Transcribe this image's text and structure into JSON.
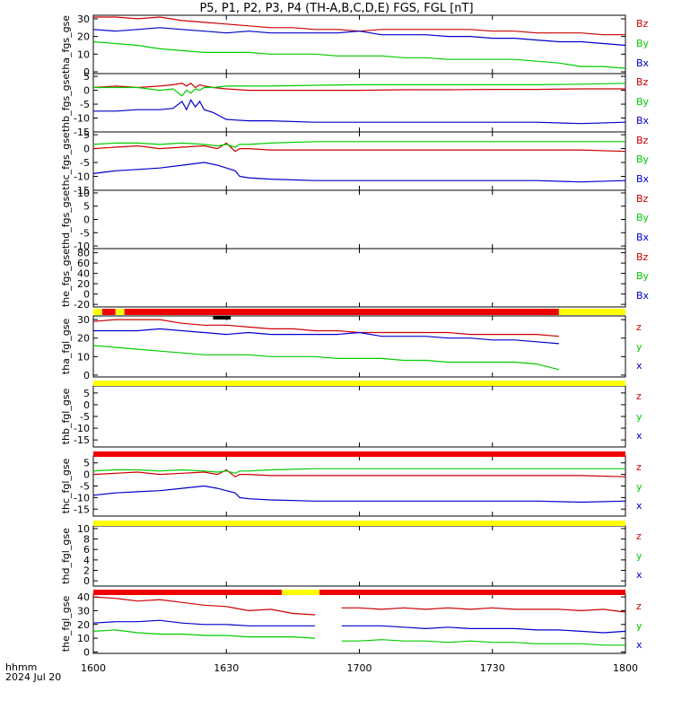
{
  "title": "P5, P1, P2, P3, P4 (TH-A,B,C,D,E) FGS, FGL [nT]",
  "footer": {
    "time_format": "hhmm",
    "date": "2024 Jul 20"
  },
  "x_ticks": [
    "1600",
    "1630",
    "1700",
    "1730",
    "1800"
  ],
  "colors": {
    "x": "#0000cc",
    "y": "#00cc00",
    "z": "#cc0000",
    "bar_red": "#ee0000",
    "bar_yellow": "#ffff00",
    "bar_black": "#000000"
  },
  "chart_data": [
    {
      "type": "line",
      "ylabel": "tha_fgs_gse",
      "ylim": [
        -1,
        32
      ],
      "yticks": [
        0,
        10,
        20,
        30
      ],
      "legend": [
        "Bz",
        "By",
        "Bx"
      ],
      "x": [
        1600,
        1605,
        1610,
        1615,
        1620,
        1625,
        1630,
        1635,
        1640,
        1645,
        1650,
        1655,
        1700,
        1705,
        1710,
        1715,
        1720,
        1725,
        1730,
        1735,
        1740,
        1745,
        1750,
        1755,
        1800
      ],
      "series": [
        {
          "name": "Bz",
          "color": "#cc0000",
          "values": [
            31,
            31,
            30,
            31,
            29,
            28,
            27,
            26,
            25,
            25,
            24,
            24,
            23,
            24,
            24,
            24,
            24,
            24,
            23,
            23,
            22,
            22,
            22,
            21,
            21
          ]
        },
        {
          "name": "By",
          "color": "#00cc00",
          "values": [
            17,
            16,
            15,
            13,
            12,
            11,
            11,
            11,
            10,
            10,
            10,
            9,
            9,
            9,
            8,
            8,
            7,
            7,
            7,
            7,
            6,
            5,
            3,
            3,
            2
          ]
        },
        {
          "name": "Bx",
          "color": "#0000cc",
          "values": [
            24,
            23,
            24,
            25,
            24,
            23,
            22,
            23,
            22,
            22,
            22,
            22,
            23,
            21,
            21,
            21,
            20,
            20,
            19,
            19,
            18,
            17,
            17,
            16,
            15
          ]
        }
      ]
    },
    {
      "type": "line",
      "ylabel": "thb_fgs_gse",
      "ylim": [
        -15,
        6
      ],
      "yticks": [
        -15,
        -10,
        -5,
        0,
        5
      ],
      "legend": [
        "Bz",
        "By",
        "Bx"
      ],
      "x": [
        1600,
        1605,
        1610,
        1615,
        1618,
        1620,
        1621,
        1622,
        1623,
        1624,
        1625,
        1627,
        1630,
        1635,
        1640,
        1650,
        1700,
        1710,
        1720,
        1730,
        1740,
        1750,
        1800
      ],
      "series": [
        {
          "name": "Bz",
          "color": "#cc0000",
          "values": [
            1,
            1.5,
            1,
            1.5,
            2,
            2.5,
            1.5,
            2.5,
            1,
            2,
            1.5,
            1,
            0.5,
            0,
            0,
            0,
            0,
            0.2,
            0.2,
            0.3,
            0.3,
            0.5,
            0.5
          ]
        },
        {
          "name": "By",
          "color": "#00cc00",
          "values": [
            1,
            1,
            1,
            0,
            0.5,
            -2,
            0,
            -1,
            0.5,
            0,
            1,
            1,
            1.5,
            1.5,
            1.5,
            1.8,
            2,
            2,
            2,
            2,
            2,
            2.2,
            2.5
          ]
        },
        {
          "name": "Bx",
          "color": "#0000cc",
          "values": [
            -7.5,
            -7.5,
            -7,
            -7,
            -6.5,
            -4,
            -7,
            -3.5,
            -6,
            -4,
            -7,
            -8,
            -10.5,
            -11,
            -11,
            -11.5,
            -11.5,
            -11.5,
            -11.5,
            -11.5,
            -11.5,
            -12,
            -11.5
          ]
        }
      ]
    },
    {
      "type": "line",
      "ylabel": "thc_fgs_gse",
      "ylim": [
        -15,
        6
      ],
      "yticks": [
        -15,
        -10,
        -5,
        0,
        5
      ],
      "legend": [
        "Bz",
        "By",
        "Bx"
      ],
      "x": [
        1600,
        1605,
        1610,
        1615,
        1620,
        1625,
        1628,
        1630,
        1632,
        1633,
        1635,
        1640,
        1650,
        1700,
        1710,
        1720,
        1730,
        1740,
        1750,
        1800
      ],
      "series": [
        {
          "name": "Bz",
          "color": "#cc0000",
          "values": [
            0,
            0.5,
            1,
            0,
            0.5,
            1,
            0,
            2,
            -1,
            0,
            0,
            -0.5,
            -0.5,
            -0.5,
            -0.5,
            -0.5,
            -0.5,
            -0.5,
            -0.5,
            -1
          ]
        },
        {
          "name": "By",
          "color": "#00cc00",
          "values": [
            1.5,
            2,
            2,
            1.5,
            2,
            1.5,
            1,
            1.5,
            0.5,
            1.5,
            1.5,
            2,
            2.5,
            2.5,
            2.5,
            2.5,
            2.5,
            2.5,
            2.5,
            2.5
          ]
        },
        {
          "name": "Bx",
          "color": "#0000cc",
          "values": [
            -9,
            -8,
            -7.5,
            -7,
            -6,
            -5,
            -6,
            -7,
            -8,
            -10,
            -10.5,
            -11,
            -11.5,
            -11.5,
            -11.5,
            -11.5,
            -11.5,
            -11.5,
            -12,
            -11.5
          ]
        }
      ]
    },
    {
      "type": "line",
      "ylabel": "thd_fgs_gse",
      "ylim": [
        -11,
        11
      ],
      "yticks": [
        -10,
        -5,
        0,
        5,
        10
      ],
      "legend": [
        "Bz",
        "By",
        "Bx"
      ],
      "series": []
    },
    {
      "type": "line",
      "ylabel": "the_fgs_gse",
      "ylim": [
        -25,
        88
      ],
      "yticks": [
        -20,
        0,
        20,
        40,
        60,
        80
      ],
      "legend": [
        "Bz",
        "By",
        "Bx"
      ],
      "series": []
    },
    {
      "type": "line",
      "ylabel": "tha_fgl_gse",
      "ylim": [
        -1,
        32
      ],
      "yticks": [
        0,
        10,
        20,
        30
      ],
      "legend": [
        "z",
        "y",
        "x"
      ],
      "x": [
        1600,
        1605,
        1610,
        1615,
        1620,
        1625,
        1630,
        1635,
        1640,
        1645,
        1650,
        1655,
        1700,
        1705,
        1710,
        1715,
        1720,
        1725,
        1730,
        1735,
        1740,
        1745
      ],
      "series": [
        {
          "name": "z",
          "color": "#cc0000",
          "values": [
            29,
            30,
            30,
            30,
            28,
            27,
            27,
            26,
            25,
            25,
            24,
            24,
            23,
            23,
            23,
            23,
            23,
            22,
            22,
            22,
            22,
            21
          ]
        },
        {
          "name": "y",
          "color": "#00cc00",
          "values": [
            16,
            15,
            14,
            13,
            12,
            11,
            11,
            11,
            10,
            10,
            10,
            9,
            9,
            9,
            8,
            8,
            7,
            7,
            7,
            7,
            6,
            3
          ]
        },
        {
          "name": "x",
          "color": "#0000cc",
          "values": [
            24,
            24,
            24,
            25,
            24,
            23,
            22,
            23,
            22,
            22,
            22,
            22,
            23,
            21,
            21,
            21,
            20,
            20,
            19,
            19,
            18,
            17
          ]
        }
      ]
    },
    {
      "type": "line",
      "ylabel": "thb_fgl_gse",
      "ylim": [
        -18,
        8
      ],
      "yticks": [
        -15,
        -10,
        -5,
        0,
        5
      ],
      "legend": [
        "z",
        "y",
        "x"
      ],
      "series": []
    },
    {
      "type": "line",
      "ylabel": "thc_fgl_gse",
      "ylim": [
        -18,
        8
      ],
      "yticks": [
        -15,
        -10,
        -5,
        0,
        5
      ],
      "legend": [
        "z",
        "y",
        "x"
      ],
      "x": [
        1600,
        1605,
        1610,
        1615,
        1620,
        1625,
        1628,
        1630,
        1632,
        1633,
        1635,
        1640,
        1650,
        1700,
        1710,
        1720,
        1730,
        1740,
        1750,
        1800
      ],
      "series": [
        {
          "name": "z",
          "color": "#cc0000",
          "values": [
            0,
            0.5,
            1,
            0,
            0.5,
            1,
            0,
            2,
            -1,
            0,
            0,
            -0.5,
            -0.5,
            -0.5,
            -0.5,
            -0.5,
            -0.5,
            -0.5,
            -0.5,
            -1
          ]
        },
        {
          "name": "y",
          "color": "#00cc00",
          "values": [
            1.5,
            2,
            2,
            1.5,
            2,
            1.5,
            1,
            1.5,
            0.5,
            1.5,
            1.5,
            2,
            2.5,
            2.5,
            2.5,
            2.5,
            2.5,
            2.5,
            2.5,
            2.5
          ]
        },
        {
          "name": "x",
          "color": "#0000cc",
          "values": [
            -9,
            -8,
            -7.5,
            -7,
            -6,
            -5,
            -6,
            -7,
            -8,
            -10,
            -10.5,
            -11,
            -11.5,
            -11.5,
            -11.5,
            -11.5,
            -11.5,
            -11.5,
            -12,
            -11.5
          ]
        }
      ]
    },
    {
      "type": "line",
      "ylabel": "thd_fgl_gse",
      "ylim": [
        -1,
        10.5
      ],
      "yticks": [
        0,
        2,
        4,
        6,
        8,
        10
      ],
      "legend": [
        "z",
        "y",
        "x"
      ],
      "series": []
    },
    {
      "type": "line",
      "ylabel": "the_fgl_gse",
      "ylim": [
        -1,
        42
      ],
      "yticks": [
        0,
        10,
        20,
        30,
        40
      ],
      "legend": [
        "z",
        "y",
        "x"
      ],
      "x": [
        1600,
        1605,
        1610,
        1615,
        1620,
        1625,
        1630,
        1635,
        1640,
        1645,
        1650,
        null,
        1656,
        1700,
        1705,
        1710,
        1715,
        1720,
        1725,
        1730,
        1735,
        1740,
        1745,
        1750,
        1755,
        1800
      ],
      "series": [
        {
          "name": "z",
          "color": "#cc0000",
          "values": [
            40,
            39,
            37,
            38,
            36,
            34,
            33,
            30,
            31,
            28,
            27,
            null,
            32,
            32,
            31,
            32,
            31,
            32,
            31,
            32,
            31,
            31,
            31,
            30,
            31,
            29
          ]
        },
        {
          "name": "y",
          "color": "#00cc00",
          "values": [
            15,
            16,
            14,
            13,
            13,
            12,
            12,
            11,
            11,
            11,
            10,
            null,
            8,
            8,
            9,
            8,
            8,
            7,
            8,
            7,
            7,
            6,
            6,
            6,
            5,
            5
          ]
        },
        {
          "name": "x",
          "color": "#0000cc",
          "values": [
            21,
            22,
            22,
            23,
            21,
            20,
            20,
            19,
            19,
            19,
            19,
            null,
            19,
            19,
            19,
            18,
            17,
            18,
            17,
            17,
            17,
            16,
            16,
            15,
            14,
            15
          ]
        }
      ]
    }
  ],
  "status_bars": [
    {
      "after_panel": 4,
      "segments": [
        {
          "from": 1600,
          "to": 1602,
          "color": "#ffff00"
        },
        {
          "from": 1602,
          "to": 1605,
          "color": "#ee0000"
        },
        {
          "from": 1605,
          "to": 1606.5,
          "color": "#ffff00"
        },
        {
          "from": 1606.5,
          "to": 1607,
          "color": "#ffff00"
        },
        {
          "from": 1607,
          "to": 1745,
          "color": "#ee0000"
        },
        {
          "from": 1745,
          "to": 1800,
          "color": "#ffff00"
        }
      ],
      "extra": {
        "from": 1627,
        "to": 1631,
        "color": "#000000"
      }
    },
    {
      "after_panel": 5,
      "segments": [
        {
          "from": 1600,
          "to": 1800,
          "color": "#ffff00"
        }
      ]
    },
    {
      "after_panel": 6,
      "segments": [
        {
          "from": 1600,
          "to": 1800,
          "color": "#ee0000"
        }
      ]
    },
    {
      "after_panel": 7,
      "segments": [
        {
          "from": 1600,
          "to": 1800,
          "color": "#ffff00"
        }
      ]
    },
    {
      "after_panel": 8,
      "segments": [
        {
          "from": 1600,
          "to": 1642.5,
          "color": "#ee0000"
        },
        {
          "from": 1642.5,
          "to": 1651,
          "color": "#ffff00"
        },
        {
          "from": 1651,
          "to": 1800,
          "color": "#ee0000"
        }
      ]
    }
  ]
}
